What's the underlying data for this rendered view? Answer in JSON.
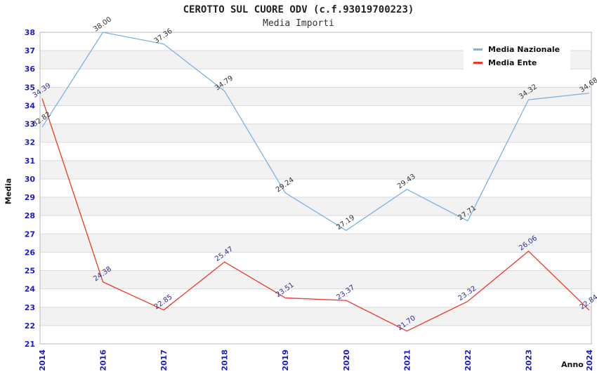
{
  "header": {
    "title": "CEROTTO SUL CUORE ODV (c.f.93019700223)",
    "subtitle": "Media Importi"
  },
  "chart_data": {
    "type": "line",
    "title": "CEROTTO SUL CUORE ODV (c.f.93019700223)",
    "subtitle": "Media Importi",
    "xlabel": "Anno",
    "ylabel": "Media",
    "categories": [
      "2014",
      "2016",
      "2017",
      "2018",
      "2019",
      "2020",
      "2021",
      "2022",
      "2023",
      "2024"
    ],
    "series": [
      {
        "name": "Media Nazionale",
        "color": "#7fb1e3",
        "label_color": "#333333",
        "values": [
          32.82,
          38.0,
          37.36,
          34.79,
          29.24,
          27.19,
          29.43,
          27.71,
          34.32,
          34.68
        ]
      },
      {
        "name": "Media Ente",
        "color": "#ee372b",
        "label_color": "#2d2d99",
        "values": [
          34.39,
          24.38,
          22.85,
          25.47,
          23.51,
          23.37,
          21.7,
          23.32,
          26.06,
          22.84
        ]
      }
    ],
    "ylim": [
      21,
      38
    ],
    "y_tick_step": 1,
    "grid": true,
    "legend_position": "top-right",
    "value_label_decimals": 2,
    "value_label_rotation": -35,
    "x_tick_rotation": -90,
    "colors": {
      "tick_label": "#1a1acc",
      "gridline": "#d9d9d9",
      "band_fill": "#f2f2f2",
      "plot_border": "#b8b8b8",
      "background": "#ffffff"
    }
  }
}
